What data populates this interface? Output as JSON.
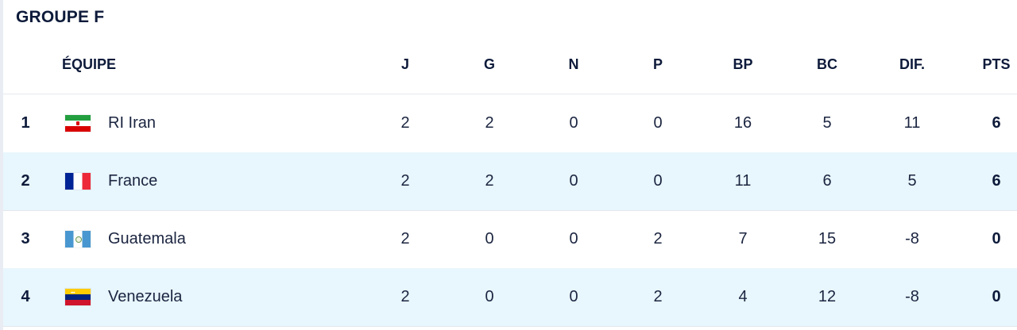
{
  "group_title": "GROUPE F",
  "header": {
    "team": "ÉQUIPE",
    "j": "J",
    "g": "G",
    "n": "N",
    "p": "P",
    "bp": "BP",
    "bc": "BC",
    "dif": "DIF.",
    "pts": "PTS"
  },
  "rows": [
    {
      "rank": "1",
      "team": "RI Iran",
      "flag": "iran-flag-icon",
      "j": "2",
      "g": "2",
      "n": "0",
      "p": "0",
      "bp": "16",
      "bc": "5",
      "dif": "11",
      "pts": "6"
    },
    {
      "rank": "2",
      "team": "France",
      "flag": "france-flag-icon",
      "j": "2",
      "g": "2",
      "n": "0",
      "p": "0",
      "bp": "11",
      "bc": "6",
      "dif": "5",
      "pts": "6"
    },
    {
      "rank": "3",
      "team": "Guatemala",
      "flag": "guatemala-flag-icon",
      "j": "2",
      "g": "0",
      "n": "0",
      "p": "2",
      "bp": "7",
      "bc": "15",
      "dif": "-8",
      "pts": "0"
    },
    {
      "rank": "4",
      "team": "Venezuela",
      "flag": "venezuela-flag-icon",
      "j": "2",
      "g": "0",
      "n": "0",
      "p": "2",
      "bp": "4",
      "bc": "12",
      "dif": "-8",
      "pts": "0"
    }
  ],
  "colors": {
    "text": "#0d1a3a",
    "row_alt_background": "#e8f6fd",
    "divider": "#e3e8ee"
  }
}
